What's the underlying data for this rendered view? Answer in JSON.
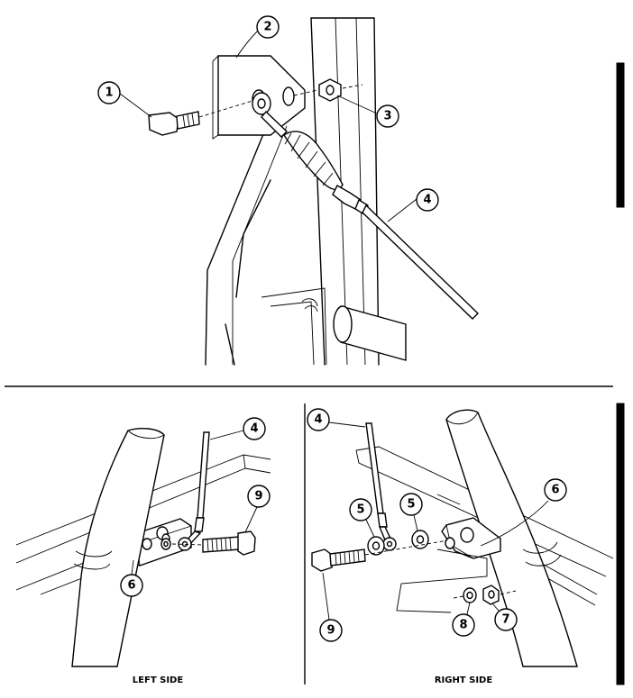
{
  "top_view": {
    "callouts": [
      "1",
      "2",
      "3",
      "4"
    ]
  },
  "bottom_left": {
    "caption": "LEFT SIDE",
    "callouts": [
      "4",
      "9",
      "6"
    ]
  },
  "bottom_right": {
    "caption": "RIGHT SIDE",
    "callouts": [
      "4",
      "5",
      "5",
      "6",
      "9",
      "8",
      "7"
    ]
  }
}
